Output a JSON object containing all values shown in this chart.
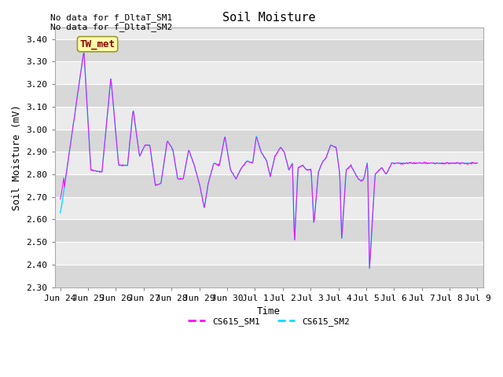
{
  "title": "Soil Moisture",
  "ylabel": "Soil Moisture (mV)",
  "xlabel": "Time",
  "ylim": [
    2.3,
    3.45
  ],
  "yticks": [
    2.3,
    2.4,
    2.5,
    2.6,
    2.7,
    2.8,
    2.9,
    3.0,
    3.1,
    3.2,
    3.3,
    3.4
  ],
  "plot_bg_light": "#ebebeb",
  "plot_bg_dark": "#d8d8d8",
  "line1_color": "#ff00ff",
  "line2_color": "#00e0ff",
  "legend1": "CS615_SM1",
  "legend2": "CS615_SM2",
  "no_data_text1": "No data for f_DltaT_SM1",
  "no_data_text2": "No data for f_DltaT_SM2",
  "tw_met_label": "TW_met",
  "title_fontsize": 11,
  "axis_label_fontsize": 9,
  "tick_fontsize": 8,
  "note_fontsize": 8,
  "x_tick_labels": [
    "Jun 24",
    "Jun 25",
    "Jun 26",
    "Jun 27",
    "Jun 28",
    "Jun 29",
    "Jun 30",
    "Jul 1",
    "Jul 2",
    "Jul 3",
    "Jul 4",
    "Jul 5",
    "Jul 6",
    "Jul 7",
    "Jul 8",
    "Jul 9"
  ],
  "ctrl_t": [
    0.0,
    0.05,
    0.12,
    0.85,
    1.1,
    1.5,
    1.82,
    2.1,
    2.42,
    2.62,
    2.85,
    3.05,
    3.22,
    3.42,
    3.62,
    3.85,
    4.05,
    4.22,
    4.42,
    4.62,
    4.82,
    5.02,
    5.18,
    5.32,
    5.52,
    5.72,
    5.92,
    6.12,
    6.32,
    6.52,
    6.72,
    6.92,
    7.05,
    7.22,
    7.42,
    7.55,
    7.72,
    7.92,
    8.05,
    8.22,
    8.35,
    8.42,
    8.55,
    8.72,
    8.85,
    9.02,
    9.12,
    9.28,
    9.45,
    9.55,
    9.72,
    9.92,
    10.05,
    10.12,
    10.28,
    10.45,
    10.62,
    10.72,
    10.82,
    10.92,
    11.05,
    11.12,
    11.32,
    11.55,
    11.72,
    11.92,
    12.0,
    13.0,
    14.0,
    15.0
  ],
  "ctrl_v": [
    2.63,
    2.66,
    2.72,
    3.35,
    2.82,
    2.81,
    3.23,
    2.84,
    2.84,
    3.09,
    2.88,
    2.93,
    2.93,
    2.75,
    2.76,
    2.95,
    2.91,
    2.78,
    2.78,
    2.91,
    2.84,
    2.75,
    2.65,
    2.76,
    2.85,
    2.84,
    2.97,
    2.82,
    2.78,
    2.83,
    2.86,
    2.85,
    2.97,
    2.9,
    2.86,
    2.79,
    2.88,
    2.92,
    2.9,
    2.82,
    2.85,
    2.49,
    2.83,
    2.84,
    2.82,
    2.82,
    2.58,
    2.81,
    2.86,
    2.87,
    2.93,
    2.92,
    2.8,
    2.51,
    2.82,
    2.84,
    2.8,
    2.78,
    2.77,
    2.78,
    2.86,
    2.38,
    2.8,
    2.83,
    2.8,
    2.85,
    2.85,
    2.85,
    2.85,
    2.85
  ]
}
